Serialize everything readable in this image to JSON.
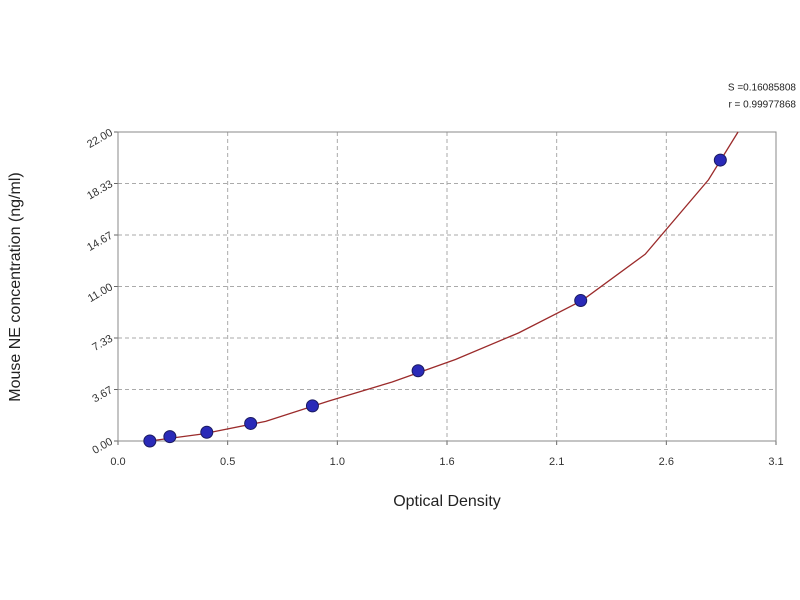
{
  "chart_data": {
    "type": "scatter",
    "x_label": "Optical Density",
    "y_label": "Mouse NE concentration (ng/ml)",
    "annotations": [
      "S =0.16085808",
      "r = 0.99977868"
    ],
    "xlim": [
      0,
      3.12
    ],
    "xticks": [
      {
        "value": 0,
        "label": "0.0"
      },
      {
        "value": 0.52,
        "label": "0.5"
      },
      {
        "value": 1.04,
        "label": "1.0"
      },
      {
        "value": 1.56,
        "label": "1.6"
      },
      {
        "value": 2.08,
        "label": "2.1"
      },
      {
        "value": 2.6,
        "label": "2.6"
      },
      {
        "value": 3.12,
        "label": "3.1"
      }
    ],
    "ylim": [
      0,
      22
    ],
    "yticks": [
      {
        "value": 0,
        "label": "0.00"
      },
      {
        "value": 3.667,
        "label": "3.67"
      },
      {
        "value": 7.333,
        "label": "7.33"
      },
      {
        "value": 11,
        "label": "11.00"
      },
      {
        "value": 14.667,
        "label": "14.67"
      },
      {
        "value": 18.333,
        "label": "18.33"
      },
      {
        "value": 22,
        "label": "22.00"
      }
    ],
    "grid": true,
    "series": [
      {
        "type": "line",
        "color": "#9b2b2b",
        "x": [
          0.15,
          0.4,
          0.7,
          1.0,
          1.3,
          1.6,
          1.9,
          2.2,
          2.5,
          2.8,
          2.94
        ],
        "values": [
          0,
          0.5,
          1.4,
          2.85,
          4.2,
          5.8,
          7.7,
          10.0,
          13.3,
          18.6,
          22
        ]
      },
      {
        "type": "scatter",
        "color": "#2a2ab8",
        "x": [
          0.151,
          0.246,
          0.421,
          0.629,
          0.922,
          1.423,
          2.194,
          2.856
        ],
        "values": [
          0,
          0.3125,
          0.625,
          1.25,
          2.5,
          5,
          10,
          20
        ]
      }
    ]
  }
}
